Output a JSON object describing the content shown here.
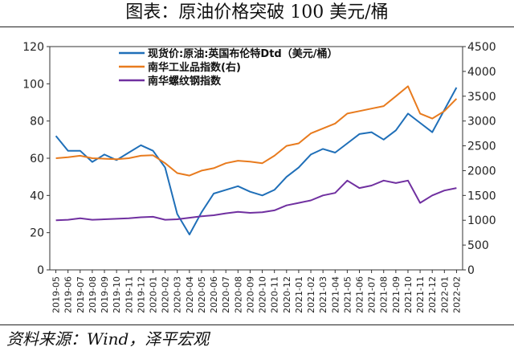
{
  "header": {
    "title": "图表：原油价格突破 100 美元/桶"
  },
  "footer": {
    "source": "资料来源：Wind，泽平宏观"
  },
  "chart_data": {
    "type": "line",
    "title": "",
    "xlabel": "",
    "ylabel": "",
    "y_left": {
      "min": 0,
      "max": 120,
      "ticks": [
        0,
        20,
        40,
        60,
        80,
        100,
        120
      ]
    },
    "y_right": {
      "min": 0,
      "max": 4500,
      "ticks": [
        0,
        500,
        1000,
        1500,
        2000,
        2500,
        3000,
        3500,
        4000,
        4500
      ]
    },
    "categories": [
      "2019-05",
      "2019-06",
      "2019-07",
      "2019-08",
      "2019-09",
      "2019-10",
      "2019-11",
      "2019-12",
      "2020-01",
      "2020-02",
      "2020-03",
      "2020-04",
      "2020-05",
      "2020-06",
      "2020-07",
      "2020-08",
      "2020-09",
      "2020-10",
      "2020-11",
      "2020-12",
      "2021-01",
      "2021-02",
      "2021-03",
      "2021-04",
      "2021-05",
      "2021-06",
      "2021-07",
      "2021-08",
      "2021-09",
      "2021-10",
      "2021-11",
      "2021-12",
      "2022-01",
      "2022-02"
    ],
    "legend_position": "top",
    "grid": false,
    "series": [
      {
        "name": "现货价:原油:英国布伦特Dtd（美元/桶）",
        "axis": "left",
        "color": "#1f6fb8",
        "values": [
          72,
          64,
          64,
          58,
          62,
          59,
          63,
          67,
          64,
          55,
          30,
          19,
          31,
          41,
          43,
          45,
          42,
          40,
          43,
          50,
          55,
          62,
          65,
          63,
          68,
          73,
          74,
          70,
          75,
          84,
          79,
          74,
          86,
          98
        ]
      },
      {
        "name": "南华工业品指数(右)",
        "axis": "right",
        "color": "#e87b1e",
        "values": [
          2250,
          2270,
          2300,
          2250,
          2240,
          2230,
          2250,
          2300,
          2310,
          2150,
          1950,
          1900,
          2000,
          2050,
          2150,
          2200,
          2180,
          2150,
          2300,
          2500,
          2550,
          2750,
          2850,
          2950,
          3150,
          3200,
          3250,
          3300,
          3500,
          3700,
          3150,
          3050,
          3200,
          3450
        ]
      },
      {
        "name": "南华螺纹钢指数",
        "axis": "right",
        "color": "#7030a0",
        "values": [
          1000,
          1010,
          1040,
          1010,
          1020,
          1030,
          1040,
          1060,
          1070,
          1010,
          1020,
          1050,
          1080,
          1100,
          1140,
          1170,
          1150,
          1160,
          1200,
          1300,
          1350,
          1400,
          1500,
          1550,
          1800,
          1650,
          1700,
          1800,
          1750,
          1800,
          1350,
          1500,
          1600,
          1650
        ]
      }
    ]
  }
}
